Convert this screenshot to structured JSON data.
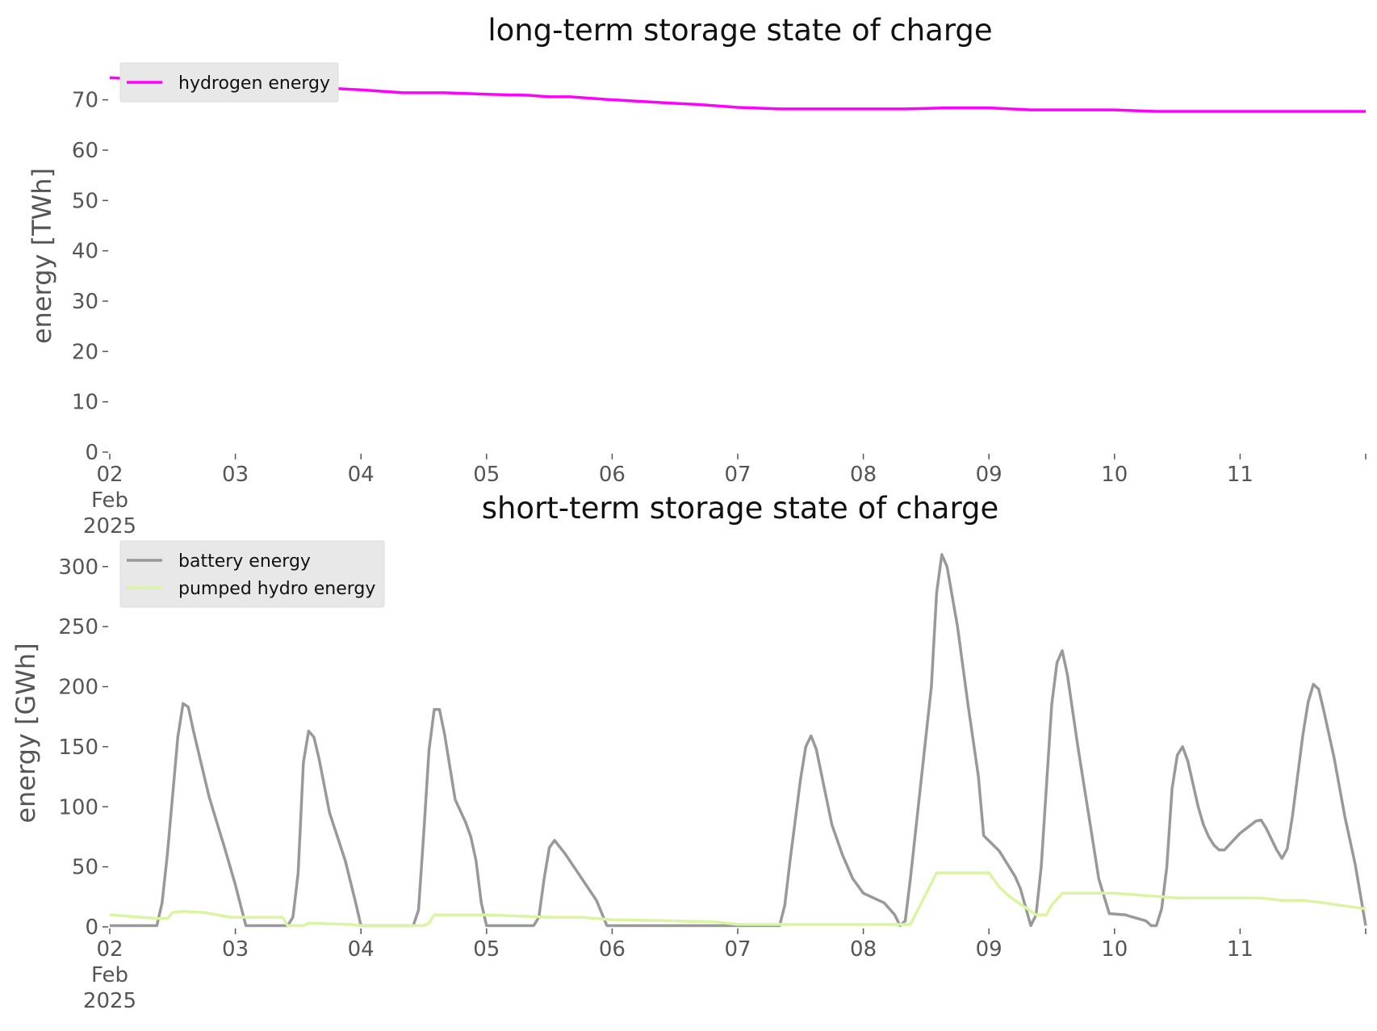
{
  "chart_data": [
    {
      "type": "line",
      "title": "long-term storage state of charge",
      "xlabel": "",
      "ylabel": "energy [TWh]",
      "xlim": [
        "2025-02-02",
        "2025-02-12"
      ],
      "ylim": [
        0,
        77
      ],
      "yticks": [
        0,
        10,
        20,
        30,
        40,
        50,
        60,
        70
      ],
      "xticks": [
        {
          "date": "2025-02-02",
          "label": "02",
          "sub1": "Feb",
          "sub2": "2025"
        },
        {
          "date": "2025-02-03",
          "label": "03"
        },
        {
          "date": "2025-02-04",
          "label": "04"
        },
        {
          "date": "2025-02-05",
          "label": "05"
        },
        {
          "date": "2025-02-06",
          "label": "06"
        },
        {
          "date": "2025-02-07",
          "label": "07"
        },
        {
          "date": "2025-02-08",
          "label": "08"
        },
        {
          "date": "2025-02-09",
          "label": "09"
        },
        {
          "date": "2025-02-10",
          "label": "10"
        },
        {
          "date": "2025-02-11",
          "label": "11"
        },
        {
          "date": "2025-02-12",
          "label": ""
        }
      ],
      "grid": false,
      "legend": "top-left",
      "series": [
        {
          "name": "hydrogen energy",
          "color": "#ff00ff",
          "points": [
            [
              "2025-02-02T00:00",
              74.4
            ],
            [
              "2025-02-02T12:00",
              73.8
            ],
            [
              "2025-02-03T00:00",
              73.2
            ],
            [
              "2025-02-03T12:00",
              72.6
            ],
            [
              "2025-02-04T00:00",
              72.0
            ],
            [
              "2025-02-04T08:00",
              71.4
            ],
            [
              "2025-02-04T16:00",
              71.4
            ],
            [
              "2025-02-05T00:00",
              71.1
            ],
            [
              "2025-02-05T08:00",
              70.9
            ],
            [
              "2025-02-05T12:00",
              70.6
            ],
            [
              "2025-02-05T16:00",
              70.6
            ],
            [
              "2025-02-06T00:00",
              70.0
            ],
            [
              "2025-02-06T12:00",
              69.3
            ],
            [
              "2025-02-06T16:00",
              69.1
            ],
            [
              "2025-02-07T00:00",
              68.5
            ],
            [
              "2025-02-07T08:00",
              68.2
            ],
            [
              "2025-02-08T00:00",
              68.2
            ],
            [
              "2025-02-08T08:00",
              68.2
            ],
            [
              "2025-02-08T16:00",
              68.4
            ],
            [
              "2025-02-09T00:00",
              68.4
            ],
            [
              "2025-02-09T08:00",
              68.0
            ],
            [
              "2025-02-10T00:00",
              68.0
            ],
            [
              "2025-02-10T08:00",
              67.7
            ],
            [
              "2025-02-12T00:00",
              67.7
            ]
          ]
        }
      ]
    },
    {
      "type": "line",
      "title": "short-term storage state of charge",
      "xlabel": "",
      "ylabel": "energy [GWh]",
      "xlim": [
        "2025-02-02",
        "2025-02-12"
      ],
      "ylim": [
        0,
        320
      ],
      "yticks": [
        0,
        50,
        100,
        150,
        200,
        250,
        300
      ],
      "xticks": [
        {
          "date": "2025-02-02",
          "label": "02",
          "sub1": "Feb",
          "sub2": "2025"
        },
        {
          "date": "2025-02-03",
          "label": "03"
        },
        {
          "date": "2025-02-04",
          "label": "04"
        },
        {
          "date": "2025-02-05",
          "label": "05"
        },
        {
          "date": "2025-02-06",
          "label": "06"
        },
        {
          "date": "2025-02-07",
          "label": "07"
        },
        {
          "date": "2025-02-08",
          "label": "08"
        },
        {
          "date": "2025-02-09",
          "label": "09"
        },
        {
          "date": "2025-02-10",
          "label": "10"
        },
        {
          "date": "2025-02-11",
          "label": "11"
        },
        {
          "date": "2025-02-12",
          "label": ""
        }
      ],
      "grid": false,
      "legend": "top-left",
      "series": [
        {
          "name": "battery energy",
          "color": "#999999",
          "points": [
            [
              "2025-02-02T00:00",
              1
            ],
            [
              "2025-02-02T09:00",
              1
            ],
            [
              "2025-02-02T10:00",
              20
            ],
            [
              "2025-02-02T11:00",
              60
            ],
            [
              "2025-02-02T13:00",
              158
            ],
            [
              "2025-02-02T14:00",
              186
            ],
            [
              "2025-02-02T15:00",
              183
            ],
            [
              "2025-02-02T16:00",
              163
            ],
            [
              "2025-02-02T19:00",
              108
            ],
            [
              "2025-02-02T22:00",
              65
            ],
            [
              "2025-02-03T00:00",
              35
            ],
            [
              "2025-02-03T02:00",
              1
            ],
            [
              "2025-02-03T10:00",
              1
            ],
            [
              "2025-02-03T11:00",
              8
            ],
            [
              "2025-02-03T12:00",
              45
            ],
            [
              "2025-02-03T13:00",
              137
            ],
            [
              "2025-02-03T14:00",
              163
            ],
            [
              "2025-02-03T15:00",
              158
            ],
            [
              "2025-02-03T16:00",
              140
            ],
            [
              "2025-02-03T18:00",
              95
            ],
            [
              "2025-02-03T21:00",
              55
            ],
            [
              "2025-02-03T23:00",
              20
            ],
            [
              "2025-02-04T00:00",
              1
            ],
            [
              "2025-02-04T10:00",
              1
            ],
            [
              "2025-02-04T11:00",
              14
            ],
            [
              "2025-02-04T12:00",
              78
            ],
            [
              "2025-02-04T13:00",
              147
            ],
            [
              "2025-02-04T14:00",
              181
            ],
            [
              "2025-02-04T15:00",
              181
            ],
            [
              "2025-02-04T16:00",
              160
            ],
            [
              "2025-02-04T18:00",
              106
            ],
            [
              "2025-02-04T20:00",
              87
            ],
            [
              "2025-02-04T21:00",
              75
            ],
            [
              "2025-02-04T22:00",
              55
            ],
            [
              "2025-02-04T23:00",
              20
            ],
            [
              "2025-02-05T00:00",
              1
            ],
            [
              "2025-02-05T09:00",
              1
            ],
            [
              "2025-02-05T10:00",
              8
            ],
            [
              "2025-02-05T11:00",
              40
            ],
            [
              "2025-02-05T12:00",
              66
            ],
            [
              "2025-02-05T13:00",
              72
            ],
            [
              "2025-02-05T15:00",
              61
            ],
            [
              "2025-02-05T19:00",
              35
            ],
            [
              "2025-02-05T21:00",
              22
            ],
            [
              "2025-02-05T23:00",
              1
            ],
            [
              "2025-02-07T08:00",
              1
            ],
            [
              "2025-02-07T09:00",
              18
            ],
            [
              "2025-02-07T10:00",
              55
            ],
            [
              "2025-02-07T12:00",
              123
            ],
            [
              "2025-02-07T13:00",
              150
            ],
            [
              "2025-02-07T14:00",
              159
            ],
            [
              "2025-02-07T15:00",
              148
            ],
            [
              "2025-02-07T17:00",
              106
            ],
            [
              "2025-02-07T18:00",
              85
            ],
            [
              "2025-02-07T20:00",
              60
            ],
            [
              "2025-02-07T22:00",
              40
            ],
            [
              "2025-02-08T00:00",
              28
            ],
            [
              "2025-02-08T04:00",
              20
            ],
            [
              "2025-02-08T06:00",
              10
            ],
            [
              "2025-02-08T07:00",
              1
            ],
            [
              "2025-02-08T08:00",
              5
            ],
            [
              "2025-02-08T09:00",
              40
            ],
            [
              "2025-02-08T11:00",
              120
            ],
            [
              "2025-02-08T13:00",
              200
            ],
            [
              "2025-02-08T14:00",
              278
            ],
            [
              "2025-02-08T15:00",
              310
            ],
            [
              "2025-02-08T16:00",
              300
            ],
            [
              "2025-02-08T18:00",
              250
            ],
            [
              "2025-02-08T20:00",
              185
            ],
            [
              "2025-02-08T22:00",
              125
            ],
            [
              "2025-02-08T23:00",
              76
            ],
            [
              "2025-02-09T02:00",
              63
            ],
            [
              "2025-02-09T05:00",
              42
            ],
            [
              "2025-02-09T06:00",
              32
            ],
            [
              "2025-02-09T08:00",
              1
            ],
            [
              "2025-02-09T09:00",
              10
            ],
            [
              "2025-02-09T10:00",
              50
            ],
            [
              "2025-02-09T12:00",
              185
            ],
            [
              "2025-02-09T13:00",
              220
            ],
            [
              "2025-02-09T14:00",
              230
            ],
            [
              "2025-02-09T15:00",
              210
            ],
            [
              "2025-02-09T17:00",
              150
            ],
            [
              "2025-02-09T19:00",
              95
            ],
            [
              "2025-02-09T21:00",
              40
            ],
            [
              "2025-02-09T23:00",
              11
            ],
            [
              "2025-02-10T02:00",
              10
            ],
            [
              "2025-02-10T06:00",
              5
            ],
            [
              "2025-02-10T07:00",
              1
            ],
            [
              "2025-02-10T08:00",
              1
            ],
            [
              "2025-02-10T09:00",
              15
            ],
            [
              "2025-02-10T10:00",
              50
            ],
            [
              "2025-02-10T11:00",
              115
            ],
            [
              "2025-02-10T12:00",
              143
            ],
            [
              "2025-02-10T13:00",
              150
            ],
            [
              "2025-02-10T14:00",
              138
            ],
            [
              "2025-02-10T16:00",
              100
            ],
            [
              "2025-02-10T17:00",
              85
            ],
            [
              "2025-02-10T18:00",
              75
            ],
            [
              "2025-02-10T19:00",
              68
            ],
            [
              "2025-02-10T20:00",
              64
            ],
            [
              "2025-02-10T21:00",
              64
            ],
            [
              "2025-02-11T00:00",
              78
            ],
            [
              "2025-02-11T03:00",
              88
            ],
            [
              "2025-02-11T04:00",
              89
            ],
            [
              "2025-02-11T05:00",
              82
            ],
            [
              "2025-02-11T07:00",
              64
            ],
            [
              "2025-02-11T08:00",
              57
            ],
            [
              "2025-02-11T09:00",
              65
            ],
            [
              "2025-02-11T10:00",
              92
            ],
            [
              "2025-02-11T12:00",
              160
            ],
            [
              "2025-02-11T13:00",
              187
            ],
            [
              "2025-02-11T14:00",
              202
            ],
            [
              "2025-02-11T15:00",
              198
            ],
            [
              "2025-02-11T16:00",
              180
            ],
            [
              "2025-02-11T18:00",
              140
            ],
            [
              "2025-02-11T20:00",
              92
            ],
            [
              "2025-02-11T22:00",
              52
            ],
            [
              "2025-02-12T00:00",
              1
            ]
          ]
        },
        {
          "name": "pumped hydro energy",
          "color": "#d9f5a1",
          "points": [
            [
              "2025-02-02T00:00",
              10
            ],
            [
              "2025-02-02T09:00",
              7
            ],
            [
              "2025-02-02T11:00",
              7
            ],
            [
              "2025-02-02T12:00",
              12
            ],
            [
              "2025-02-02T14:00",
              13
            ],
            [
              "2025-02-02T18:00",
              12
            ],
            [
              "2025-02-02T23:00",
              8
            ],
            [
              "2025-02-03T00:00",
              8
            ],
            [
              "2025-02-03T09:00",
              8
            ],
            [
              "2025-02-03T10:00",
              1
            ],
            [
              "2025-02-03T13:00",
              1
            ],
            [
              "2025-02-03T14:00",
              3
            ],
            [
              "2025-02-03T22:00",
              2
            ],
            [
              "2025-02-04T00:00",
              1
            ],
            [
              "2025-02-04T12:00",
              1
            ],
            [
              "2025-02-04T13:00",
              3
            ],
            [
              "2025-02-04T14:00",
              10
            ],
            [
              "2025-02-05T00:00",
              10
            ],
            [
              "2025-02-05T12:00",
              8
            ],
            [
              "2025-02-05T18:00",
              8
            ],
            [
              "2025-02-06T00:00",
              6
            ],
            [
              "2025-02-06T12:00",
              5
            ],
            [
              "2025-02-06T20:00",
              4
            ],
            [
              "2025-02-07T00:00",
              2
            ],
            [
              "2025-02-08T09:00",
              2
            ],
            [
              "2025-02-08T14:00",
              45
            ],
            [
              "2025-02-09T00:00",
              45
            ],
            [
              "2025-02-09T02:00",
              33
            ],
            [
              "2025-02-09T04:00",
              25
            ],
            [
              "2025-02-09T07:00",
              16
            ],
            [
              "2025-02-09T09:00",
              10
            ],
            [
              "2025-02-09T11:00",
              10
            ],
            [
              "2025-02-09T12:00",
              18
            ],
            [
              "2025-02-09T14:00",
              28
            ],
            [
              "2025-02-10T00:00",
              28
            ],
            [
              "2025-02-10T12:00",
              24
            ],
            [
              "2025-02-11T00:00",
              24
            ],
            [
              "2025-02-11T04:00",
              24
            ],
            [
              "2025-02-11T08:00",
              22
            ],
            [
              "2025-02-11T12:00",
              22
            ],
            [
              "2025-02-11T16:00",
              20
            ],
            [
              "2025-02-12T00:00",
              15
            ]
          ]
        }
      ]
    }
  ]
}
